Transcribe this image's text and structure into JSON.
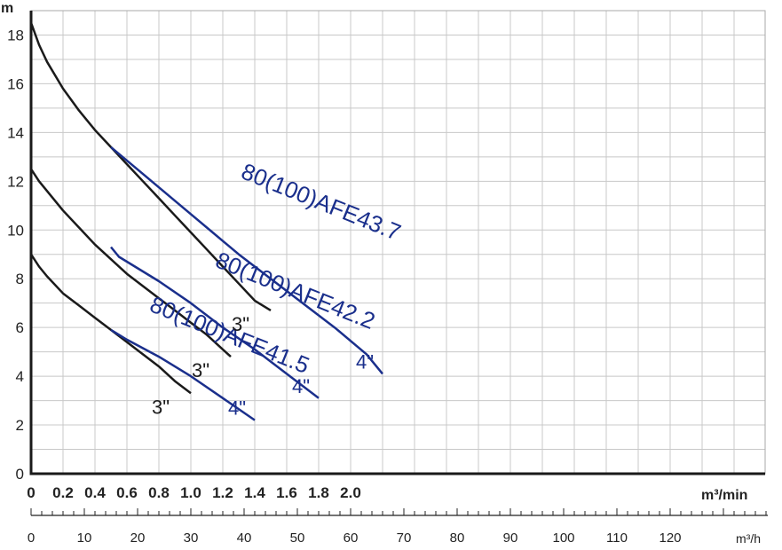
{
  "chart_data": {
    "type": "line",
    "ylabel": "m",
    "xlabel": "m³/min",
    "xlabel_secondary": "m³/h",
    "xlim": [
      0,
      2.3
    ],
    "ylim": [
      0,
      19
    ],
    "grid": true,
    "x_ticks": [
      "0",
      "0.2",
      "0.4",
      "0.6",
      "0.8",
      "1.0",
      "1.2",
      "1.4",
      "1.6",
      "1.8",
      "2.0"
    ],
    "y_ticks": [
      "0",
      "2",
      "4",
      "6",
      "8",
      "10",
      "12",
      "14",
      "16",
      "18"
    ],
    "secondary_x_ticks": [
      "0",
      "10",
      "20",
      "30",
      "40",
      "50",
      "60",
      "70",
      "80",
      "90",
      "100",
      "110",
      "120"
    ],
    "colors": {
      "black": "#1a1a1a",
      "blue": "#1a2f8c"
    },
    "series": [
      {
        "name": "80(100)AFE43.7",
        "size": "3\"",
        "color": "black",
        "x": [
          0,
          0.05,
          0.1,
          0.2,
          0.3,
          0.4,
          0.5,
          0.6,
          0.7,
          0.8,
          0.9,
          1.0,
          1.1,
          1.2,
          1.3,
          1.4,
          1.5
        ],
        "y": [
          18.5,
          17.6,
          16.9,
          15.8,
          14.9,
          14.1,
          13.4,
          12.7,
          12.0,
          11.3,
          10.6,
          9.9,
          9.2,
          8.5,
          7.8,
          7.1,
          6.7
        ]
      },
      {
        "name": "80(100)AFE42.2",
        "size": "3\"",
        "color": "black",
        "x": [
          0,
          0.05,
          0.1,
          0.2,
          0.3,
          0.4,
          0.5,
          0.6,
          0.7,
          0.8,
          0.9,
          1.0,
          1.1,
          1.2,
          1.25
        ],
        "y": [
          12.5,
          12.0,
          11.6,
          10.8,
          10.1,
          9.4,
          8.8,
          8.2,
          7.7,
          7.2,
          6.7,
          6.2,
          5.7,
          5.1,
          4.8
        ]
      },
      {
        "name": "80(100)AFE41.5",
        "size": "3\"",
        "color": "black",
        "x": [
          0,
          0.05,
          0.1,
          0.2,
          0.3,
          0.4,
          0.5,
          0.6,
          0.7,
          0.8,
          0.9,
          1.0
        ],
        "y": [
          9.0,
          8.5,
          8.1,
          7.4,
          6.9,
          6.4,
          5.9,
          5.4,
          4.9,
          4.4,
          3.8,
          3.3
        ]
      },
      {
        "name": "80(100)AFE43.7",
        "size": "4\"",
        "color": "blue",
        "x": [
          0.5,
          0.7,
          0.9,
          1.1,
          1.3,
          1.5,
          1.7,
          1.9,
          2.1,
          2.2
        ],
        "y": [
          13.4,
          12.3,
          11.2,
          10.1,
          9.0,
          8.0,
          7.0,
          6.0,
          4.9,
          4.1
        ]
      },
      {
        "name": "80(100)AFE42.2",
        "size": "4\"",
        "color": "blue",
        "x": [
          0.5,
          0.55,
          0.6,
          0.8,
          1.0,
          1.2,
          1.4,
          1.6,
          1.8
        ],
        "y": [
          9.3,
          8.9,
          8.7,
          7.9,
          7.0,
          6.0,
          5.1,
          4.1,
          3.1
        ]
      },
      {
        "name": "80(100)AFE41.5",
        "size": "4\"",
        "color": "blue",
        "x": [
          0.5,
          0.6,
          0.8,
          1.0,
          1.2,
          1.4
        ],
        "y": [
          5.9,
          5.5,
          4.8,
          4.0,
          3.1,
          2.2
        ]
      }
    ]
  }
}
